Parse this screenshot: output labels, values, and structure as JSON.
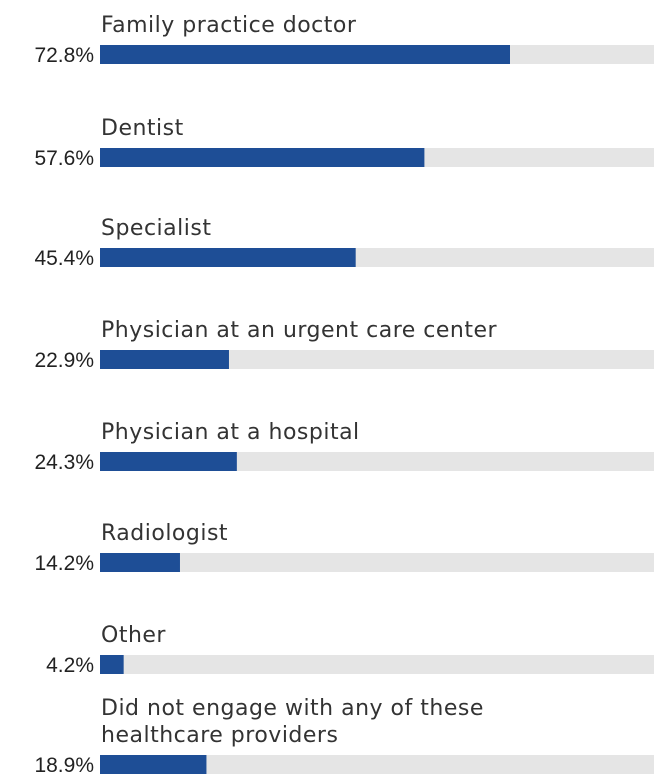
{
  "colors": {
    "bar_fill": "#1e4e96",
    "track_fill": "#e5e5e5",
    "label_text": "#333333",
    "value_text": "#222222"
  },
  "chart_data": {
    "type": "bar",
    "orientation": "horizontal",
    "title": "",
    "xlabel": "",
    "ylabel": "",
    "xlim": [
      0,
      100
    ],
    "value_suffix": "%",
    "grid": false,
    "legend": "none",
    "categories": [
      "Family practice doctor",
      "Dentist",
      "Specialist",
      "Physician at an urgent care center",
      "Physician at a hospital",
      "Radiologist",
      "Other",
      "Did not engage with any of these healthcare providers"
    ],
    "category_lines": [
      [
        "Family practice doctor"
      ],
      [
        "Dentist"
      ],
      [
        "Specialist"
      ],
      [
        "Physician at an urgent care center"
      ],
      [
        "Physician at a hospital"
      ],
      [
        "Radiologist"
      ],
      [
        "Other"
      ],
      [
        "Did not engage with any of these",
        "healthcare providers"
      ]
    ],
    "values": [
      72.8,
      57.6,
      45.4,
      22.9,
      24.3,
      14.2,
      4.2,
      18.9
    ],
    "value_labels": [
      "72.8%",
      "57.6%",
      "45.4%",
      "22.9%",
      "24.3%",
      "14.2%",
      "4.2%",
      "18.9%"
    ]
  }
}
